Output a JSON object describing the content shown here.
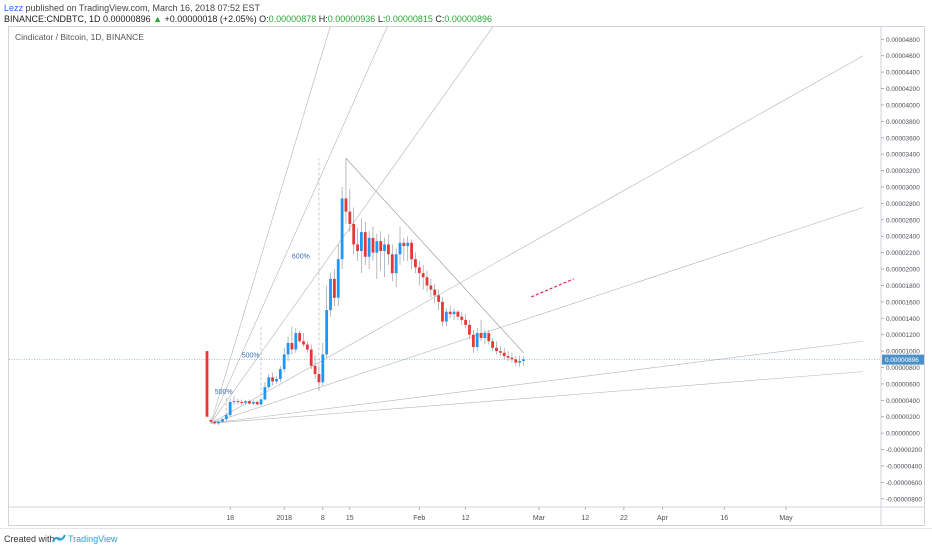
{
  "header": {
    "user": "Lezz",
    "published_text": "published on TradingView.com, March 16, 2018 07:52 EST",
    "symbol": "BINANCE:CNDBTC, 1D",
    "last": "0.00000896",
    "change_arrow": "▲",
    "change": "+0.00000018 (+2.05%)",
    "o_label": "O:",
    "o_value": "0.00000878",
    "h_label": "H:",
    "h_value": "0.00000936",
    "l_label": "L:",
    "l_value": "0.00000815",
    "c_label": "C:",
    "c_value": "0.00000896"
  },
  "footer": {
    "created": "Created with",
    "brand": "TradingView"
  },
  "chart_data": {
    "type": "candlestick",
    "title": "Cindicator / Bitcoin, 1D, BINANCE",
    "ylim": [
      -9e-06,
      4.95e-05
    ],
    "y_ticks": [
      {
        "v": 4.8e-05,
        "label": "0.00004800"
      },
      {
        "v": 4.6e-05,
        "label": "0.00004600"
      },
      {
        "v": 4.4e-05,
        "label": "0.00004400"
      },
      {
        "v": 4.2e-05,
        "label": "0.00004200"
      },
      {
        "v": 4e-05,
        "label": "0.00004000"
      },
      {
        "v": 3.8e-05,
        "label": "0.00003800"
      },
      {
        "v": 3.6e-05,
        "label": "0.00003600"
      },
      {
        "v": 3.4e-05,
        "label": "0.00003400"
      },
      {
        "v": 3.2e-05,
        "label": "0.00003200"
      },
      {
        "v": 3e-05,
        "label": "0.00003000"
      },
      {
        "v": 2.8e-05,
        "label": "0.00002800"
      },
      {
        "v": 2.6e-05,
        "label": "0.00002600"
      },
      {
        "v": 2.4e-05,
        "label": "0.00002400"
      },
      {
        "v": 2.2e-05,
        "label": "0.00002200"
      },
      {
        "v": 2e-05,
        "label": "0.00002000"
      },
      {
        "v": 1.8e-05,
        "label": "0.00001800"
      },
      {
        "v": 1.6e-05,
        "label": "0.00001600"
      },
      {
        "v": 1.4e-05,
        "label": "0.00001400"
      },
      {
        "v": 1.2e-05,
        "label": "0.00001200"
      },
      {
        "v": 1e-05,
        "label": "0.00001000"
      },
      {
        "v": 8e-06,
        "label": "0.00000800"
      },
      {
        "v": 6e-06,
        "label": "0.00000600"
      },
      {
        "v": 4e-06,
        "label": "0.00000400"
      },
      {
        "v": 2e-06,
        "label": "0.00000200"
      },
      {
        "v": 0,
        "label": "0.00000000"
      },
      {
        "v": -2e-06,
        "label": "-0.00000200"
      },
      {
        "v": -4e-06,
        "label": "-0.00000400"
      },
      {
        "v": -6e-06,
        "label": "-0.00000600"
      },
      {
        "v": -8e-06,
        "label": "-0.00000800"
      }
    ],
    "last_price": {
      "v": 8.96e-06,
      "label": "0.00000896"
    },
    "x_ticks": [
      {
        "day": 6,
        "label": "18"
      },
      {
        "day": 20,
        "label": "2018"
      },
      {
        "day": 30,
        "label": "8"
      },
      {
        "day": 37,
        "label": "15"
      },
      {
        "day": 55,
        "label": "Feb"
      },
      {
        "day": 67,
        "label": "12"
      },
      {
        "day": 86,
        "label": "Mar"
      },
      {
        "day": 98,
        "label": "12"
      },
      {
        "day": 108,
        "label": "22"
      },
      {
        "day": 118,
        "label": "Apr"
      },
      {
        "day": 134,
        "label": "16"
      },
      {
        "day": 150,
        "label": "May"
      }
    ],
    "candles": [
      {
        "day": 0,
        "o": 1e-05,
        "h": 1e-05,
        "l": 2e-06,
        "c": 2e-06
      },
      {
        "day": 1,
        "o": 1.6e-06,
        "h": 1.8e-06,
        "l": 1.2e-06,
        "c": 1.4e-06
      },
      {
        "day": 2,
        "o": 1.4e-06,
        "h": 1.6e-06,
        "l": 1e-06,
        "c": 1.2e-06
      },
      {
        "day": 3,
        "o": 1.2e-06,
        "h": 1.5e-06,
        "l": 1e-06,
        "c": 1.4e-06
      },
      {
        "day": 4,
        "o": 1.4e-06,
        "h": 1.8e-06,
        "l": 1.3e-06,
        "c": 1.7e-06
      },
      {
        "day": 5,
        "o": 1.7e-06,
        "h": 2.5e-06,
        "l": 1.5e-06,
        "c": 2.2e-06
      },
      {
        "day": 6,
        "o": 2.2e-06,
        "h": 4.2e-06,
        "l": 2e-06,
        "c": 3.8e-06
      },
      {
        "day": 7,
        "o": 3.8e-06,
        "h": 4.5e-06,
        "l": 3.4e-06,
        "c": 3.9e-06
      },
      {
        "day": 8,
        "o": 3.9e-06,
        "h": 4.2e-06,
        "l": 3.5e-06,
        "c": 3.8e-06
      },
      {
        "day": 9,
        "o": 3.8e-06,
        "h": 4.1e-06,
        "l": 3.4e-06,
        "c": 3.7e-06
      },
      {
        "day": 10,
        "o": 3.7e-06,
        "h": 4e-06,
        "l": 3.4e-06,
        "c": 3.9e-06
      },
      {
        "day": 11,
        "o": 3.9e-06,
        "h": 4.1e-06,
        "l": 3.5e-06,
        "c": 3.6e-06
      },
      {
        "day": 12,
        "o": 3.6e-06,
        "h": 4e-06,
        "l": 3.4e-06,
        "c": 3.8e-06
      },
      {
        "day": 13,
        "o": 3.8e-06,
        "h": 4e-06,
        "l": 3.4e-06,
        "c": 3.5e-06
      },
      {
        "day": 14,
        "o": 3.5e-06,
        "h": 4.2e-06,
        "l": 3.4e-06,
        "c": 4.1e-06
      },
      {
        "day": 15,
        "o": 4.1e-06,
        "h": 6.2e-06,
        "l": 4e-06,
        "c": 5.6e-06
      },
      {
        "day": 16,
        "o": 5.6e-06,
        "h": 7.2e-06,
        "l": 5.4e-06,
        "c": 6.8e-06
      },
      {
        "day": 17,
        "o": 6.8e-06,
        "h": 7.4e-06,
        "l": 5.8e-06,
        "c": 6.3e-06
      },
      {
        "day": 18,
        "o": 6.3e-06,
        "h": 7e-06,
        "l": 6e-06,
        "c": 6.6e-06
      },
      {
        "day": 19,
        "o": 6.6e-06,
        "h": 8.2e-06,
        "l": 6.2e-06,
        "c": 7.8e-06
      },
      {
        "day": 20,
        "o": 7.8e-06,
        "h": 1.04e-05,
        "l": 7.4e-06,
        "c": 9.6e-06
      },
      {
        "day": 21,
        "o": 9.6e-06,
        "h": 1.18e-05,
        "l": 8.8e-06,
        "c": 1.1e-05
      },
      {
        "day": 22,
        "o": 1.1e-05,
        "h": 1.3e-05,
        "l": 9.6e-06,
        "c": 1.02e-05
      },
      {
        "day": 23,
        "o": 1.02e-05,
        "h": 1.28e-05,
        "l": 9.8e-06,
        "c": 1.22e-05
      },
      {
        "day": 24,
        "o": 1.22e-05,
        "h": 1.25e-05,
        "l": 1.1e-05,
        "c": 1.12e-05
      },
      {
        "day": 25,
        "o": 1.12e-05,
        "h": 1.22e-05,
        "l": 1.05e-05,
        "c": 1.08e-05
      },
      {
        "day": 26,
        "o": 1.08e-05,
        "h": 1.12e-05,
        "l": 9.8e-06,
        "c": 1.02e-05
      },
      {
        "day": 27,
        "o": 1.02e-05,
        "h": 1.08e-05,
        "l": 7.8e-06,
        "c": 8.2e-06
      },
      {
        "day": 28,
        "o": 8.2e-06,
        "h": 9.5e-06,
        "l": 6.6e-06,
        "c": 7.2e-06
      },
      {
        "day": 29,
        "o": 7.2e-06,
        "h": 8.2e-06,
        "l": 5.2e-06,
        "c": 6.2e-06
      },
      {
        "day": 30,
        "o": 6.2e-06,
        "h": 1.1e-05,
        "l": 5.8e-06,
        "c": 9.6e-06
      },
      {
        "day": 31,
        "o": 9.6e-06,
        "h": 1.8e-05,
        "l": 9.2e-06,
        "c": 1.5e-05
      },
      {
        "day": 32,
        "o": 1.5e-05,
        "h": 1.95e-05,
        "l": 1.42e-05,
        "c": 1.88e-05
      },
      {
        "day": 33,
        "o": 1.88e-05,
        "h": 2e-05,
        "l": 1.55e-05,
        "c": 1.65e-05
      },
      {
        "day": 34,
        "o": 1.65e-05,
        "h": 2.3e-05,
        "l": 1.55e-05,
        "c": 2.12e-05
      },
      {
        "day": 35,
        "o": 2.12e-05,
        "h": 3e-05,
        "l": 2e-05,
        "c": 2.86e-05
      },
      {
        "day": 36,
        "o": 2.86e-05,
        "h": 3.35e-05,
        "l": 2.55e-05,
        "c": 2.7e-05
      },
      {
        "day": 37,
        "o": 2.7e-05,
        "h": 2.98e-05,
        "l": 2.45e-05,
        "c": 2.55e-05
      },
      {
        "day": 38,
        "o": 2.55e-05,
        "h": 2.75e-05,
        "l": 2.18e-05,
        "c": 2.3e-05
      },
      {
        "day": 39,
        "o": 2.3e-05,
        "h": 2.5e-05,
        "l": 2.1e-05,
        "c": 2.22e-05
      },
      {
        "day": 40,
        "o": 2.22e-05,
        "h": 2.62e-05,
        "l": 1.95e-05,
        "c": 2.45e-05
      },
      {
        "day": 41,
        "o": 2.45e-05,
        "h": 2.58e-05,
        "l": 2.05e-05,
        "c": 2.15e-05
      },
      {
        "day": 42,
        "o": 2.15e-05,
        "h": 2.46e-05,
        "l": 2e-05,
        "c": 2.38e-05
      },
      {
        "day": 43,
        "o": 2.38e-05,
        "h": 2.52e-05,
        "l": 2.1e-05,
        "c": 2.2e-05
      },
      {
        "day": 44,
        "o": 2.2e-05,
        "h": 2.43e-05,
        "l": 1.88e-05,
        "c": 2.34e-05
      },
      {
        "day": 45,
        "o": 2.34e-05,
        "h": 2.46e-05,
        "l": 1.98e-05,
        "c": 2.22e-05
      },
      {
        "day": 46,
        "o": 2.22e-05,
        "h": 2.38e-05,
        "l": 1.9e-05,
        "c": 2.3e-05
      },
      {
        "day": 47,
        "o": 2.3e-05,
        "h": 2.42e-05,
        "l": 2.05e-05,
        "c": 2.18e-05
      },
      {
        "day": 48,
        "o": 2.18e-05,
        "h": 2.3e-05,
        "l": 1.85e-05,
        "c": 1.95e-05
      },
      {
        "day": 49,
        "o": 1.95e-05,
        "h": 2.25e-05,
        "l": 1.78e-05,
        "c": 2.18e-05
      },
      {
        "day": 50,
        "o": 2.18e-05,
        "h": 2.52e-05,
        "l": 2.05e-05,
        "c": 2.32e-05
      },
      {
        "day": 51,
        "o": 2.32e-05,
        "h": 2.38e-05,
        "l": 2.1e-05,
        "c": 2.28e-05
      },
      {
        "day": 52,
        "o": 2.28e-05,
        "h": 2.4e-05,
        "l": 2.1e-05,
        "c": 2.32e-05
      },
      {
        "day": 53,
        "o": 2.32e-05,
        "h": 2.36e-05,
        "l": 2e-05,
        "c": 2.12e-05
      },
      {
        "day": 54,
        "o": 2.12e-05,
        "h": 2.2e-05,
        "l": 1.95e-05,
        "c": 2.02e-05
      },
      {
        "day": 55,
        "o": 2.02e-05,
        "h": 2.1e-05,
        "l": 1.8e-05,
        "c": 1.95e-05
      },
      {
        "day": 56,
        "o": 1.95e-05,
        "h": 2.05e-05,
        "l": 1.75e-05,
        "c": 1.9e-05
      },
      {
        "day": 57,
        "o": 1.9e-05,
        "h": 1.98e-05,
        "l": 1.72e-05,
        "c": 1.8e-05
      },
      {
        "day": 58,
        "o": 1.8e-05,
        "h": 1.88e-05,
        "l": 1.65e-05,
        "c": 1.75e-05
      },
      {
        "day": 59,
        "o": 1.75e-05,
        "h": 1.82e-05,
        "l": 1.58e-05,
        "c": 1.68e-05
      },
      {
        "day": 60,
        "o": 1.68e-05,
        "h": 1.75e-05,
        "l": 1.5e-05,
        "c": 1.6e-05
      },
      {
        "day": 61,
        "o": 1.6e-05,
        "h": 1.66e-05,
        "l": 1.3e-05,
        "c": 1.36e-05
      },
      {
        "day": 62,
        "o": 1.36e-05,
        "h": 1.52e-05,
        "l": 1.3e-05,
        "c": 1.48e-05
      },
      {
        "day": 63,
        "o": 1.48e-05,
        "h": 1.55e-05,
        "l": 1.4e-05,
        "c": 1.45e-05
      },
      {
        "day": 64,
        "o": 1.45e-05,
        "h": 1.52e-05,
        "l": 1.38e-05,
        "c": 1.48e-05
      },
      {
        "day": 65,
        "o": 1.48e-05,
        "h": 1.5e-05,
        "l": 1.38e-05,
        "c": 1.42e-05
      },
      {
        "day": 66,
        "o": 1.42e-05,
        "h": 1.48e-05,
        "l": 1.32e-05,
        "c": 1.38e-05
      },
      {
        "day": 67,
        "o": 1.38e-05,
        "h": 1.45e-05,
        "l": 1.28e-05,
        "c": 1.32e-05
      },
      {
        "day": 68,
        "o": 1.32e-05,
        "h": 1.38e-05,
        "l": 1.15e-05,
        "c": 1.2e-05
      },
      {
        "day": 69,
        "o": 1.2e-05,
        "h": 1.26e-05,
        "l": 9.8e-06,
        "c": 1.05e-05
      },
      {
        "day": 70,
        "o": 1.05e-05,
        "h": 1.28e-05,
        "l": 1e-05,
        "c": 1.22e-05
      },
      {
        "day": 71,
        "o": 1.22e-05,
        "h": 1.38e-05,
        "l": 1.12e-05,
        "c": 1.16e-05
      },
      {
        "day": 72,
        "o": 1.16e-05,
        "h": 1.26e-05,
        "l": 1.08e-05,
        "c": 1.22e-05
      },
      {
        "day": 73,
        "o": 1.22e-05,
        "h": 1.26e-05,
        "l": 1.08e-05,
        "c": 1.12e-05
      },
      {
        "day": 74,
        "o": 1.12e-05,
        "h": 1.16e-05,
        "l": 1e-05,
        "c": 1.04e-05
      },
      {
        "day": 75,
        "o": 1.04e-05,
        "h": 1.12e-05,
        "l": 9.6e-06,
        "c": 1e-05
      },
      {
        "day": 76,
        "o": 1e-05,
        "h": 1.06e-05,
        "l": 9.4e-06,
        "c": 9.8e-06
      },
      {
        "day": 77,
        "o": 9.8e-06,
        "h": 1.04e-05,
        "l": 9e-06,
        "c": 9.4e-06
      },
      {
        "day": 78,
        "o": 9.4e-06,
        "h": 1e-05,
        "l": 8.8e-06,
        "c": 9.2e-06
      },
      {
        "day": 79,
        "o": 9.2e-06,
        "h": 9.8e-06,
        "l": 8.6e-06,
        "c": 9e-06
      },
      {
        "day": 80,
        "o": 9e-06,
        "h": 9.4e-06,
        "l": 8.2e-06,
        "c": 8.6e-06
      },
      {
        "day": 81,
        "o": 8.6e-06,
        "h": 9.4e-06,
        "l": 8.1e-06,
        "c": 8.8e-06
      },
      {
        "day": 82,
        "o": 8.8e-06,
        "h": 9.4e-06,
        "l": 8.2e-06,
        "c": 9e-06
      }
    ],
    "candle_colors": {
      "up": "#2196f3",
      "down": "#e53935"
    },
    "fan_origin": {
      "day": 1,
      "v": 1.2e-06
    },
    "fan_lines": [
      {
        "day": 45,
        "v": 7e-05
      },
      {
        "day": 66,
        "v": 7e-05
      },
      {
        "day": 105,
        "v": 7e-05
      },
      {
        "day": 170,
        "v": 4.6e-05
      },
      {
        "day": 170,
        "v": 2.75e-05
      },
      {
        "day": 170,
        "v": 1.12e-05
      },
      {
        "day": 170,
        "v": 7.5e-06
      }
    ],
    "down_line": [
      {
        "day": 36,
        "v": 3.35e-05
      },
      {
        "day": 82,
        "v": 9.8e-06
      }
    ],
    "measure_lines": [
      {
        "day": 5,
        "v1": 1.5e-06,
        "v2": 4.4e-06
      },
      {
        "day": 14,
        "v1": 3.4e-06,
        "v2": 1.32e-05
      },
      {
        "day": 29,
        "v1": 5.2e-06,
        "v2": 3.35e-05
      }
    ],
    "labels": [
      {
        "text": "500%",
        "day": 2,
        "v": 4.8e-06
      },
      {
        "text": "500%",
        "day": 9,
        "v": 9.2e-06
      },
      {
        "text": "600%",
        "day": 22,
        "v": 2.13e-05
      }
    ],
    "dashed_projection": [
      {
        "day": 84,
        "v": 1.66e-05
      },
      {
        "day": 95,
        "v": 1.88e-05
      }
    ],
    "dashed_color": "#e91e63"
  }
}
